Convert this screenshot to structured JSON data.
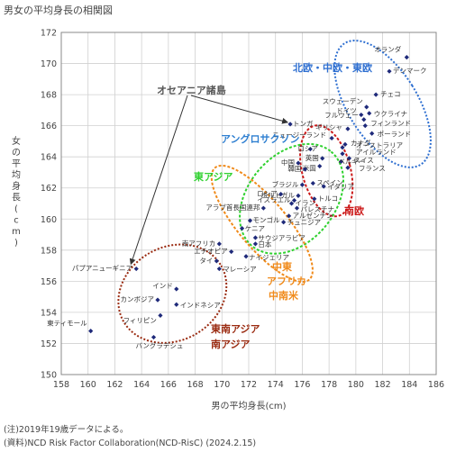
{
  "title": "男女の平均身長の相関図",
  "notes": [
    "(注)2019年19歳データによる。",
    "(資料)NCD Risk Factor Collaboration(NCD-RisC) (2024.2.15)"
  ],
  "colors": {
    "point": "#1f2a7a",
    "europe": "#2e6fd1",
    "anglo": "#2e7fd1",
    "eastasia": "#2fd12f",
    "south_europe": "#cc1a1a",
    "middle": "#f08a1a",
    "southasia": "#9a2a10",
    "oceania": "#555555"
  },
  "chart_data": {
    "type": "scatter",
    "title": "男女の平均身長の相関図",
    "xlabel": "男の平均身長(cm)",
    "ylabel": "女の平均身長(cm)",
    "xlim": [
      158,
      186
    ],
    "ylim": [
      150,
      172
    ],
    "xticks": [
      158,
      160,
      162,
      164,
      166,
      168,
      170,
      172,
      174,
      176,
      178,
      180,
      182,
      184,
      186
    ],
    "yticks": [
      150,
      152,
      154,
      156,
      158,
      160,
      162,
      164,
      166,
      168,
      170,
      172
    ],
    "grid": true,
    "points": [
      {
        "label": "オランダ",
        "x": 183.8,
        "y": 170.4
      },
      {
        "label": "デンマーク",
        "x": 182.5,
        "y": 169.5
      },
      {
        "label": "スウェーデン",
        "x": 180.8,
        "y": 167.2
      },
      {
        "label": "フルウェー",
        "x": 180.6,
        "y": 166.4
      },
      {
        "label": "チェコ",
        "x": 181.5,
        "y": 168.0
      },
      {
        "label": "ウクライナ",
        "x": 181.0,
        "y": 166.8
      },
      {
        "label": "ドイツ",
        "x": 180.4,
        "y": 166.7
      },
      {
        "label": "フィンランド",
        "x": 180.7,
        "y": 166.0
      },
      {
        "label": "ギリシャ",
        "x": 179.4,
        "y": 165.8
      },
      {
        "label": "ポーランド",
        "x": 181.2,
        "y": 165.5
      },
      {
        "label": "トンガ",
        "x": 175.1,
        "y": 166.1
      },
      {
        "label": "ニュージーランド",
        "x": 178.2,
        "y": 165.2
      },
      {
        "label": "カナダ",
        "x": 179.2,
        "y": 164.8
      },
      {
        "label": "ロシア",
        "x": 176.6,
        "y": 164.5
      },
      {
        "label": "オーストラリア",
        "x": 179.0,
        "y": 164.6
      },
      {
        "label": "アイルランド",
        "x": 179.0,
        "y": 164.2
      },
      {
        "label": "フランス",
        "x": 179.4,
        "y": 163.3
      },
      {
        "label": "スイス",
        "x": 178.9,
        "y": 163.7
      },
      {
        "label": "ベルギー",
        "x": 179.5,
        "y": 163.9
      },
      {
        "label": "英国",
        "x": 177.5,
        "y": 163.9
      },
      {
        "label": "米国",
        "x": 177.3,
        "y": 163.4
      },
      {
        "label": "中国",
        "x": 175.7,
        "y": 163.6
      },
      {
        "label": "韓国",
        "x": 176.2,
        "y": 163.2
      },
      {
        "label": "ブラジル",
        "x": 176.0,
        "y": 162.2
      },
      {
        "label": "ポルトガル",
        "x": 175.7,
        "y": 161.5
      },
      {
        "label": "スペイン",
        "x": 176.8,
        "y": 162.3
      },
      {
        "label": "イタリア",
        "x": 177.6,
        "y": 162.1
      },
      {
        "label": "トルコ",
        "x": 176.9,
        "y": 161.3
      },
      {
        "label": "イラン",
        "x": 175.2,
        "y": 161.0
      },
      {
        "label": "パレスチナ",
        "x": 175.6,
        "y": 160.7
      },
      {
        "label": "イスラエル",
        "x": 175.4,
        "y": 161.2
      },
      {
        "label": "ロシア",
        "x": 174.4,
        "y": 161.6
      },
      {
        "label": "アルゼンチン",
        "x": 175.0,
        "y": 160.2
      },
      {
        "label": "チュニジア",
        "x": 174.6,
        "y": 159.8
      },
      {
        "label": "アラブ首長国連邦",
        "x": 173.1,
        "y": 160.7
      },
      {
        "label": "モンゴル",
        "x": 172.1,
        "y": 159.9
      },
      {
        "label": "ケニア",
        "x": 171.5,
        "y": 159.4
      },
      {
        "label": "サウジアラビア",
        "x": 172.5,
        "y": 158.8
      },
      {
        "label": "南アフリカ",
        "x": 169.8,
        "y": 158.4
      },
      {
        "label": "日本",
        "x": 172.5,
        "y": 158.4
      },
      {
        "label": "エチオピア",
        "x": 170.7,
        "y": 157.9
      },
      {
        "label": "ナイジェリア",
        "x": 171.8,
        "y": 157.6
      },
      {
        "label": "タイ",
        "x": 169.6,
        "y": 157.3
      },
      {
        "label": "マレーシア",
        "x": 169.8,
        "y": 156.8
      },
      {
        "label": "パプアニューギニア",
        "x": 163.6,
        "y": 156.8
      },
      {
        "label": "インド",
        "x": 166.6,
        "y": 155.5
      },
      {
        "label": "カンボジア",
        "x": 165.2,
        "y": 154.8
      },
      {
        "label": "インドネシア",
        "x": 166.6,
        "y": 154.5
      },
      {
        "label": "フィリピン",
        "x": 165.4,
        "y": 153.8
      },
      {
        "label": "東ティモール",
        "x": 160.2,
        "y": 152.8
      },
      {
        "label": "バングラデシュ",
        "x": 164.9,
        "y": 152.4
      }
    ],
    "annotations": [
      {
        "text": "北欧・中欧・東欧",
        "color": "europe"
      },
      {
        "text": "オセアニア諸島",
        "color": "oceania"
      },
      {
        "text": "アングロサクソン",
        "color": "anglo"
      },
      {
        "text": "東アジア",
        "color": "eastasia"
      },
      {
        "text": "南欧",
        "color": "south_europe"
      },
      {
        "text": "中東",
        "color": "middle"
      },
      {
        "text": "アフリカ",
        "color": "middle"
      },
      {
        "text": "中南米",
        "color": "middle"
      },
      {
        "text": "東南アジア",
        "color": "southasia"
      },
      {
        "text": "南アジア",
        "color": "southasia"
      }
    ]
  }
}
